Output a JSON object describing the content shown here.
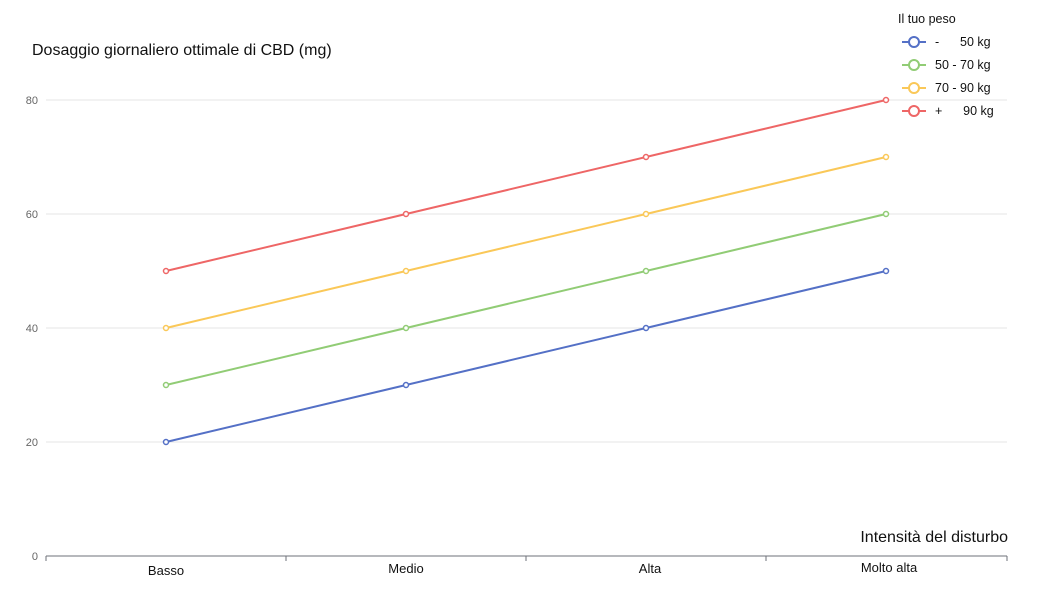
{
  "chart_data": {
    "type": "line",
    "ylabel": "Dosaggio giornaliero ottimale di CBD (mg)",
    "xlabel": "Intensità del disturbo",
    "categories": [
      "Basso",
      "Medio",
      "Alta",
      "Molto alta"
    ],
    "ylim": [
      0,
      80
    ],
    "yticks": [
      0,
      20,
      40,
      60,
      80
    ],
    "grid": true,
    "legend": {
      "title": "Il tuo peso",
      "placement": "top-right"
    },
    "series": [
      {
        "name": "-      50 kg",
        "color": "#5470c6",
        "values": [
          20,
          30,
          40,
          50
        ]
      },
      {
        "name": "50 - 70 kg",
        "color": "#91cc75",
        "values": [
          30,
          40,
          50,
          60
        ]
      },
      {
        "name": "70 - 90 kg",
        "color": "#fac858",
        "values": [
          40,
          50,
          60,
          70
        ]
      },
      {
        "name": "+      90 kg",
        "color": "#ee6666",
        "values": [
          50,
          60,
          70,
          80
        ]
      }
    ]
  }
}
